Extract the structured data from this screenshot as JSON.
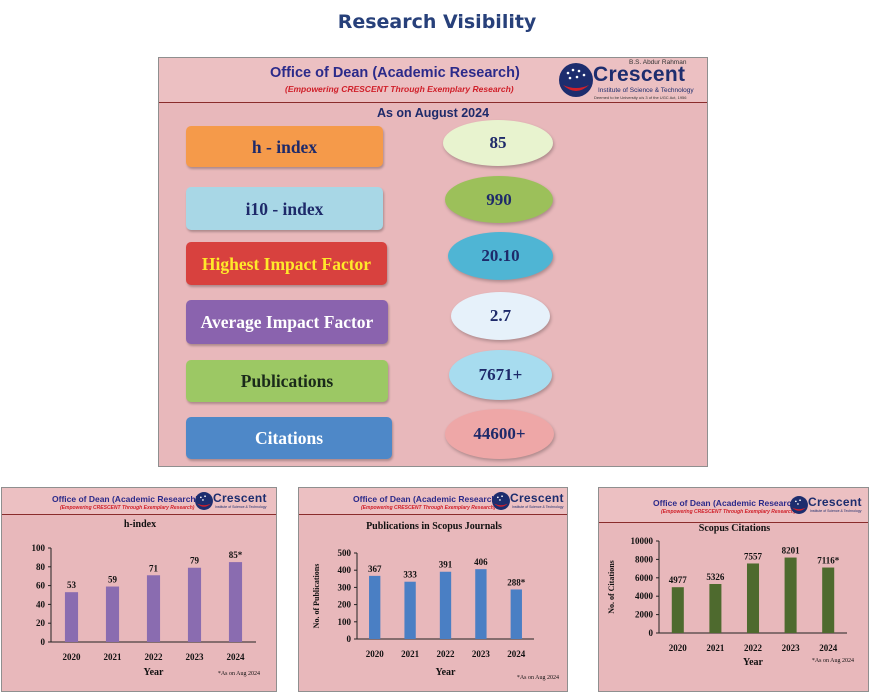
{
  "page": {
    "title": "Research Visibility"
  },
  "header": {
    "office": "Office of Dean (Academic Research)",
    "tagline": "(Empowering CRESCENT Through Exemplary Research)"
  },
  "logo": {
    "top": "B.S. Abdur Rahman",
    "word": "Crescent",
    "line1": "Institute of Science & Technology",
    "line2": "Deemed to be University u/s 3 of the UGC Act, 1956"
  },
  "summary": {
    "as_of": "As on August 2024",
    "metrics": [
      {
        "label": "h - index",
        "value": "85",
        "label_bg": "#f59a4a",
        "label_fg": "#1e2a6a",
        "value_bg": "#e8f3cf"
      },
      {
        "label": "i10 - index",
        "value": "990",
        "label_bg": "#a8d7e6",
        "label_fg": "#1e2a6a",
        "value_bg": "#9cc05a"
      },
      {
        "label": "Highest Impact Factor",
        "value": "20.10",
        "label_bg": "#d8413e",
        "label_fg": "#ffe92a",
        "value_bg": "#4fb5d4"
      },
      {
        "label": "Average Impact Factor",
        "value": "2.7",
        "label_bg": "#8a63ae",
        "label_fg": "#ffffff",
        "value_bg": "#e6f1fa"
      },
      {
        "label": "Publications",
        "value": "7671+",
        "label_bg": "#9cc864",
        "label_fg": "#1a2a1a",
        "value_bg": "#a7dcef"
      },
      {
        "label": "Citations",
        "value": "44600+",
        "label_bg": "#4e88c8",
        "label_fg": "#ffffff",
        "value_bg": "#eea7a7"
      }
    ]
  },
  "chart_data": [
    {
      "type": "bar",
      "title": "h-index",
      "categories": [
        "2020",
        "2021",
        "2022",
        "2023",
        "2024"
      ],
      "values": [
        53,
        59,
        71,
        79,
        85
      ],
      "value_labels": [
        "53",
        "59",
        "71",
        "79",
        "85*"
      ],
      "xlabel": "Year",
      "ylabel": "",
      "ylim": [
        0,
        100
      ],
      "yticks": [
        "0",
        "20",
        "40",
        "60",
        "80",
        "100"
      ],
      "note": "*As on Aug 2024",
      "color": "#8a6cb0"
    },
    {
      "type": "bar",
      "title": "Publications in Scopus Journals",
      "categories": [
        "2020",
        "2021",
        "2022",
        "2023",
        "2024"
      ],
      "values": [
        367,
        333,
        391,
        406,
        288
      ],
      "value_labels": [
        "367",
        "333",
        "391",
        "406",
        "288*"
      ],
      "xlabel": "Year",
      "ylabel": "No. of Publications",
      "ylim": [
        0,
        500
      ],
      "yticks": [
        "0",
        "100",
        "200",
        "300",
        "400",
        "500"
      ],
      "note": "*As on Aug 2024",
      "color": "#4a7fc4"
    },
    {
      "type": "bar",
      "title": "Scopus Citations",
      "categories": [
        "2020",
        "2021",
        "2022",
        "2023",
        "2024"
      ],
      "values": [
        4977,
        5326,
        7557,
        8201,
        7116
      ],
      "value_labels": [
        "4977",
        "5326",
        "7557",
        "8201",
        "7116*"
      ],
      "xlabel": "Year",
      "ylabel": "No. of Citations",
      "ylim": [
        0,
        10000
      ],
      "yticks": [
        "0",
        "2000",
        "4000",
        "6000",
        "8000",
        "10000"
      ],
      "note": "*As on Aug 2024",
      "color": "#4e6a2e"
    }
  ]
}
